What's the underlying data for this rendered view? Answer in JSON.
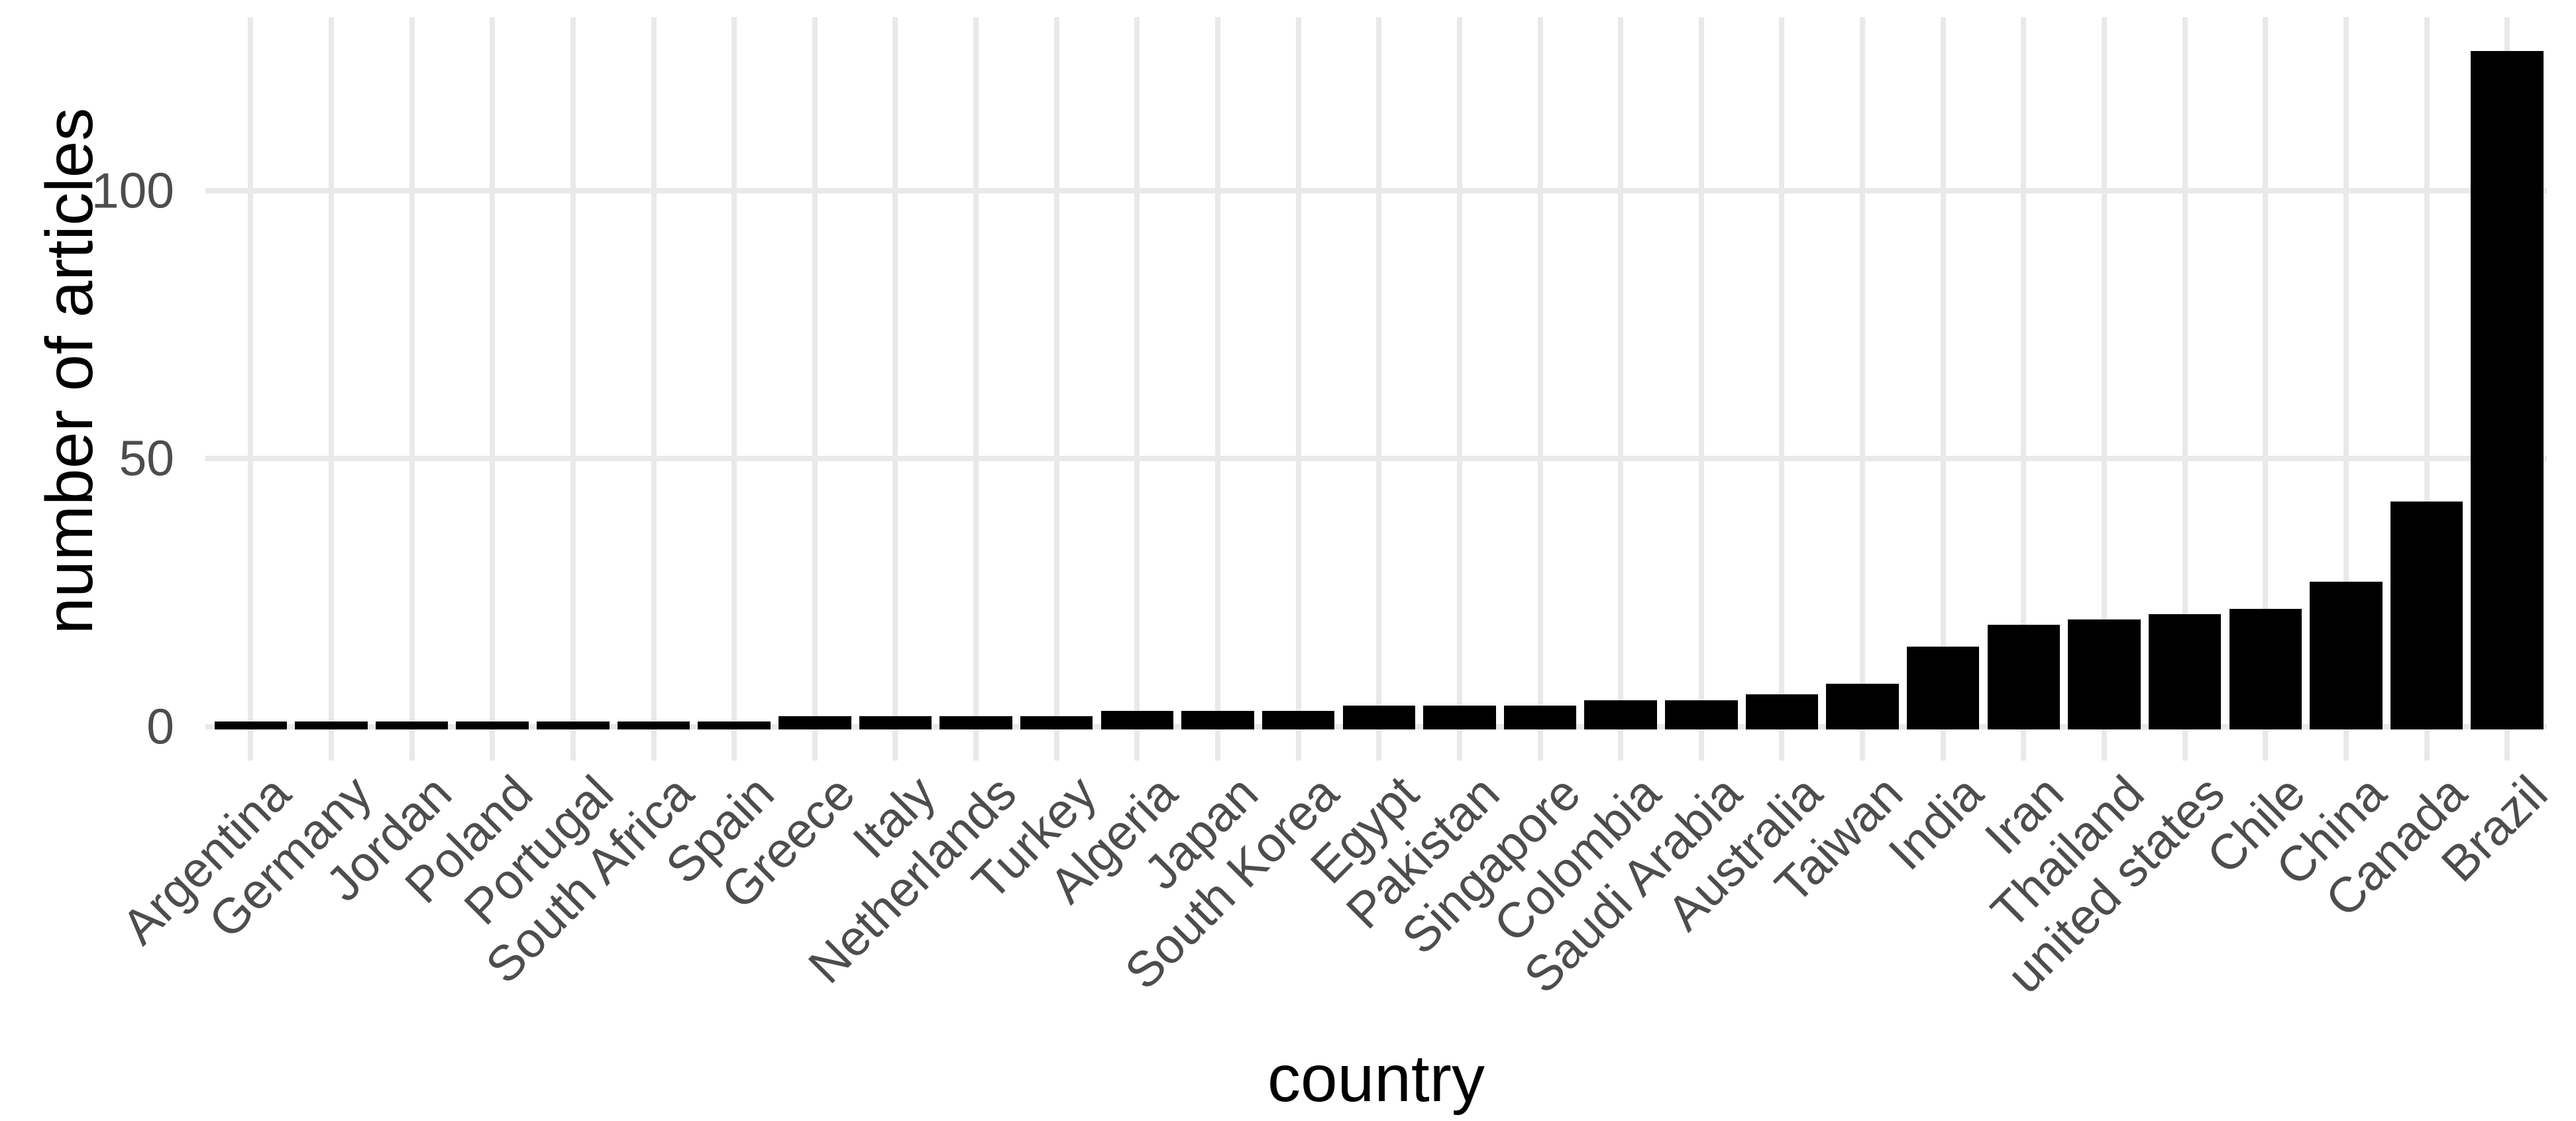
{
  "chart_data": {
    "type": "bar",
    "title": "",
    "xlabel": "country",
    "ylabel": "number of articles",
    "categories": [
      "Argentina",
      "Germany",
      "Jordan",
      "Poland",
      "Portugal",
      "South Africa",
      "Spain",
      "Greece",
      "Italy",
      "Netherlands",
      "Turkey",
      "Algeria",
      "Japan",
      "South Korea",
      "Egypt",
      "Pakistan",
      "Singapore",
      "Colombia",
      "Saudi Arabia",
      "Australia",
      "Taiwan",
      "India",
      "Iran",
      "Thailand",
      "united states",
      "Chile",
      "China",
      "Canada",
      "Brazil"
    ],
    "values": [
      1,
      1,
      1,
      1,
      1,
      1,
      1,
      2,
      2,
      2,
      2,
      3,
      3,
      3,
      4,
      4,
      4,
      5,
      5,
      6,
      8,
      15,
      19,
      20,
      21,
      22,
      27,
      42,
      126
    ],
    "yticks": [
      0,
      50,
      100
    ],
    "ylim": [
      0,
      132
    ],
    "grid": "major gridlines, light gray on white",
    "legend": "none",
    "bar_color": "#000000",
    "gridline_color": "#e9e9e9",
    "tick_label_color": "#4d4d4d",
    "axis_title_color": "#000000",
    "background_color": "#ffffff",
    "x_label_rotation_deg": 45
  }
}
